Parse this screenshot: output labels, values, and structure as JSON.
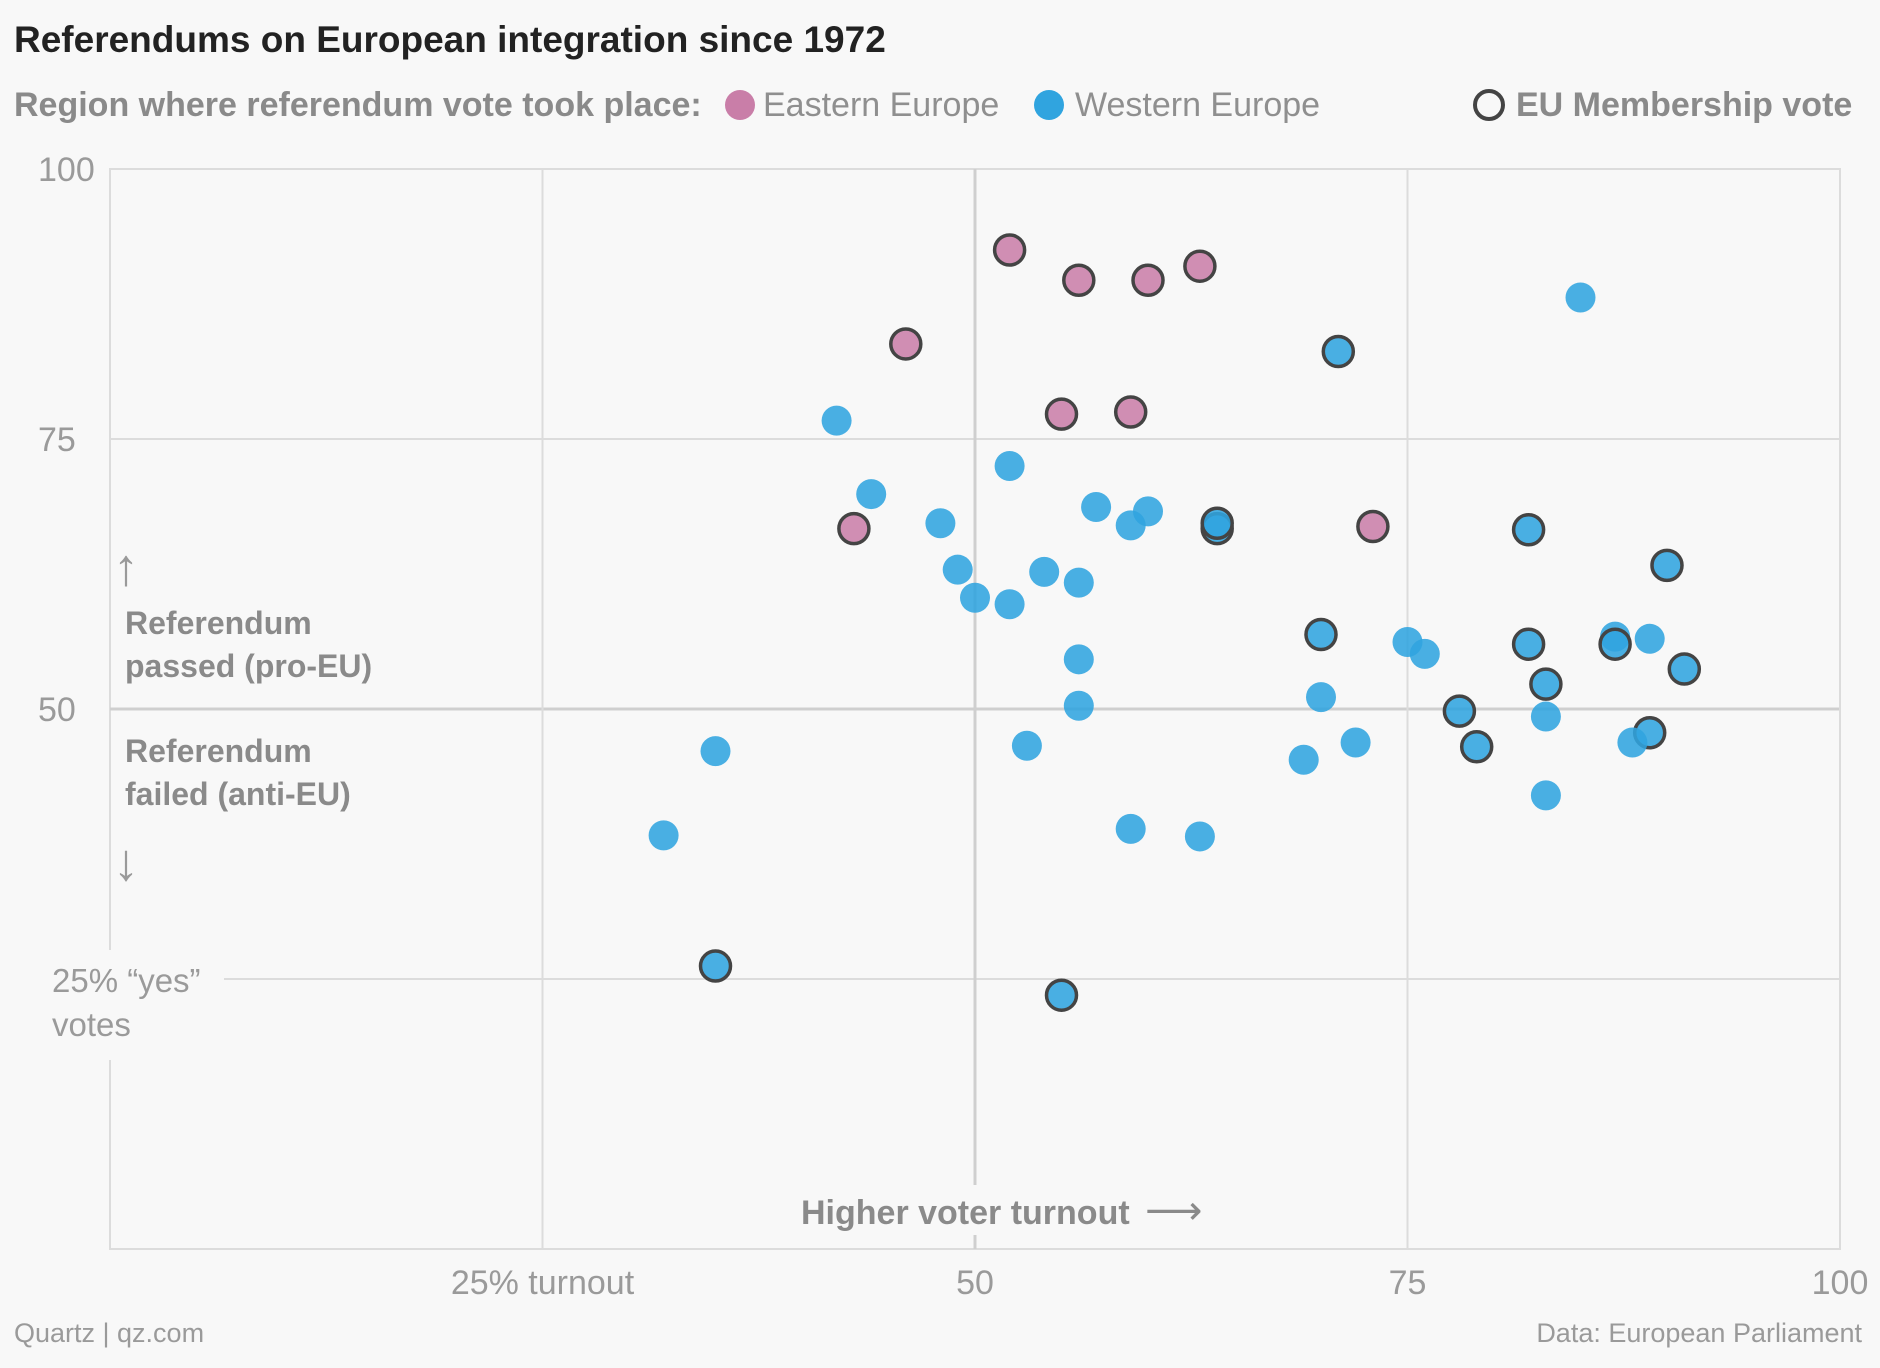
{
  "title": "Referendums on European integration since 1972",
  "legend": {
    "lead": "Region where referendum vote took place:",
    "eastern": "Eastern Europe",
    "western": "Western Europe",
    "membership": "EU Membership vote"
  },
  "annotations": {
    "passed_line1": "Referendum",
    "passed_line2": "passed (pro-EU)",
    "failed_line1": "Referendum",
    "failed_line2": "failed (anti-EU)",
    "turnout": "Higher voter turnout",
    "yes_line1": "25% “yes”",
    "yes_line2": "votes"
  },
  "footer": {
    "source_left": "Quartz | qz.com",
    "source_right": "Data: European Parliament"
  },
  "colors": {
    "eastern": "#c97ea8",
    "western": "#30a4df",
    "membership_outline": "#444444",
    "background": "#f8f8f8"
  },
  "chart_data": {
    "type": "scatter",
    "title": "Referendums on European integration since 1972",
    "xlim": [
      0,
      100
    ],
    "ylim": [
      0,
      100
    ],
    "x_ticks": [
      {
        "value": 25,
        "label": "25% turnout"
      },
      {
        "value": 50,
        "label": "50"
      },
      {
        "value": 75,
        "label": "75"
      },
      {
        "value": 100,
        "label": "100"
      }
    ],
    "y_ticks": [
      {
        "value": 25,
        "label": "25% “yes”"
      },
      {
        "value": 50,
        "label": "50"
      },
      {
        "value": 75,
        "label": "75"
      },
      {
        "value": 100,
        "label": "100"
      }
    ],
    "grid": true,
    "legend_position": "top",
    "series": [
      {
        "name": "Eastern Europe",
        "points": [
          {
            "x": 52,
            "y": 92.5,
            "membership": true
          },
          {
            "x": 56,
            "y": 89.7,
            "membership": true
          },
          {
            "x": 60,
            "y": 89.7,
            "membership": true
          },
          {
            "x": 63,
            "y": 91.0,
            "membership": true
          },
          {
            "x": 46,
            "y": 83.8,
            "membership": true
          },
          {
            "x": 55,
            "y": 77.3,
            "membership": true
          },
          {
            "x": 59,
            "y": 77.5,
            "membership": true
          },
          {
            "x": 43,
            "y": 66.7,
            "membership": true
          },
          {
            "x": 73,
            "y": 66.9,
            "membership": true
          }
        ]
      },
      {
        "name": "Western Europe",
        "points": [
          {
            "x": 85,
            "y": 88.1,
            "membership": false
          },
          {
            "x": 71,
            "y": 83.1,
            "membership": true
          },
          {
            "x": 42,
            "y": 76.7,
            "membership": false
          },
          {
            "x": 52,
            "y": 72.5,
            "membership": false
          },
          {
            "x": 44,
            "y": 69.9,
            "membership": false
          },
          {
            "x": 57,
            "y": 68.7,
            "membership": false
          },
          {
            "x": 48,
            "y": 67.2,
            "membership": false
          },
          {
            "x": 59,
            "y": 67.0,
            "membership": false
          },
          {
            "x": 60,
            "y": 68.3,
            "membership": false
          },
          {
            "x": 64,
            "y": 66.7,
            "membership": true
          },
          {
            "x": 64,
            "y": 67.2,
            "membership": true
          },
          {
            "x": 82,
            "y": 66.6,
            "membership": true
          },
          {
            "x": 90,
            "y": 63.3,
            "membership": true
          },
          {
            "x": 49,
            "y": 62.9,
            "membership": false
          },
          {
            "x": 54,
            "y": 62.7,
            "membership": false
          },
          {
            "x": 56,
            "y": 61.7,
            "membership": false
          },
          {
            "x": 50,
            "y": 60.3,
            "membership": false
          },
          {
            "x": 52,
            "y": 59.7,
            "membership": false
          },
          {
            "x": 70,
            "y": 56.9,
            "membership": true
          },
          {
            "x": 75,
            "y": 56.2,
            "membership": false
          },
          {
            "x": 76,
            "y": 55.1,
            "membership": false
          },
          {
            "x": 82,
            "y": 56.0,
            "membership": true
          },
          {
            "x": 87,
            "y": 56.7,
            "membership": false
          },
          {
            "x": 87,
            "y": 56.0,
            "membership": true
          },
          {
            "x": 89,
            "y": 56.5,
            "membership": false
          },
          {
            "x": 91,
            "y": 53.7,
            "membership": true
          },
          {
            "x": 56,
            "y": 54.6,
            "membership": false
          },
          {
            "x": 83,
            "y": 52.3,
            "membership": true
          },
          {
            "x": 70,
            "y": 51.1,
            "membership": false
          },
          {
            "x": 56,
            "y": 50.3,
            "membership": false
          },
          {
            "x": 78,
            "y": 49.8,
            "membership": true
          },
          {
            "x": 83,
            "y": 49.3,
            "membership": false
          },
          {
            "x": 89,
            "y": 47.8,
            "membership": true
          },
          {
            "x": 88,
            "y": 46.9,
            "membership": false
          },
          {
            "x": 72,
            "y": 46.9,
            "membership": false
          },
          {
            "x": 79,
            "y": 46.5,
            "membership": true
          },
          {
            "x": 53,
            "y": 46.6,
            "membership": false
          },
          {
            "x": 35,
            "y": 46.1,
            "membership": false
          },
          {
            "x": 69,
            "y": 45.3,
            "membership": false
          },
          {
            "x": 83,
            "y": 42.0,
            "membership": false
          },
          {
            "x": 59,
            "y": 38.9,
            "membership": false
          },
          {
            "x": 63,
            "y": 38.2,
            "membership": false
          },
          {
            "x": 32,
            "y": 38.3,
            "membership": false
          },
          {
            "x": 35,
            "y": 26.2,
            "membership": true
          },
          {
            "x": 55,
            "y": 23.5,
            "membership": true
          }
        ]
      }
    ]
  }
}
